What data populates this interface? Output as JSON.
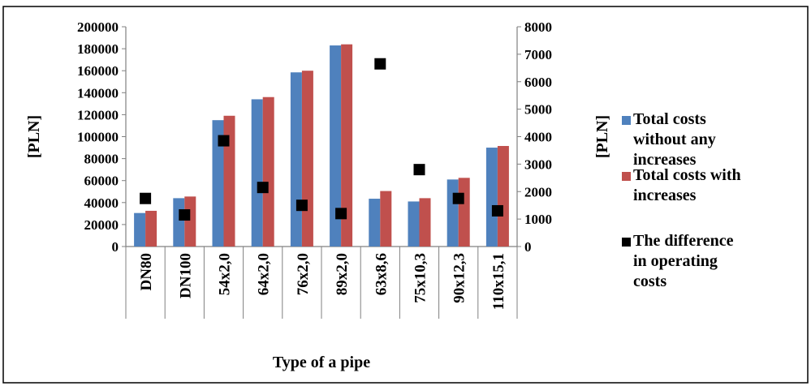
{
  "chart_data": {
    "type": "bar",
    "categories": [
      "DN80",
      "DN100",
      "54x2,0",
      "64x2,0",
      "76x2,0",
      "89x2,0",
      "63x8,6",
      "75x10,3",
      "90x12,3",
      "110x15,1"
    ],
    "series": [
      {
        "name": "Total costs without any increases",
        "axis": "left",
        "type": "bar",
        "color": "#4f81bd",
        "values": [
          30500,
          44000,
          115000,
          134000,
          158500,
          183000,
          43500,
          41000,
          61000,
          90000
        ]
      },
      {
        "name": "Total costs with increases",
        "axis": "left",
        "type": "bar",
        "color": "#c0504d",
        "values": [
          32500,
          45500,
          119000,
          136000,
          160000,
          184000,
          50500,
          44000,
          62500,
          91500
        ]
      },
      {
        "name": "The difference in operating costs",
        "axis": "right",
        "type": "scatter",
        "color": "#000000",
        "values": [
          1750,
          1150,
          3850,
          2150,
          1500,
          1200,
          6650,
          2800,
          1750,
          1300
        ]
      }
    ],
    "y_left": {
      "label": "[PLN]",
      "ylim": [
        0,
        200000
      ],
      "ticks": [
        "0",
        "20000",
        "40000",
        "60000",
        "80000",
        "100000",
        "120000",
        "140000",
        "160000",
        "180000",
        "200000"
      ]
    },
    "y_right": {
      "label": "[PLN]",
      "ylim": [
        0,
        8000
      ],
      "ticks": [
        "0",
        "1000",
        "2000",
        "3000",
        "4000",
        "5000",
        "6000",
        "7000",
        "8000"
      ]
    },
    "xlabel": "Type of a pipe",
    "legend": {
      "position": "right",
      "entries": [
        [
          "Total costs",
          "without any",
          "increases"
        ],
        [
          "Total costs with",
          "increases"
        ],
        [
          "The difference",
          "in operating",
          "costs"
        ]
      ]
    },
    "grid": false
  }
}
